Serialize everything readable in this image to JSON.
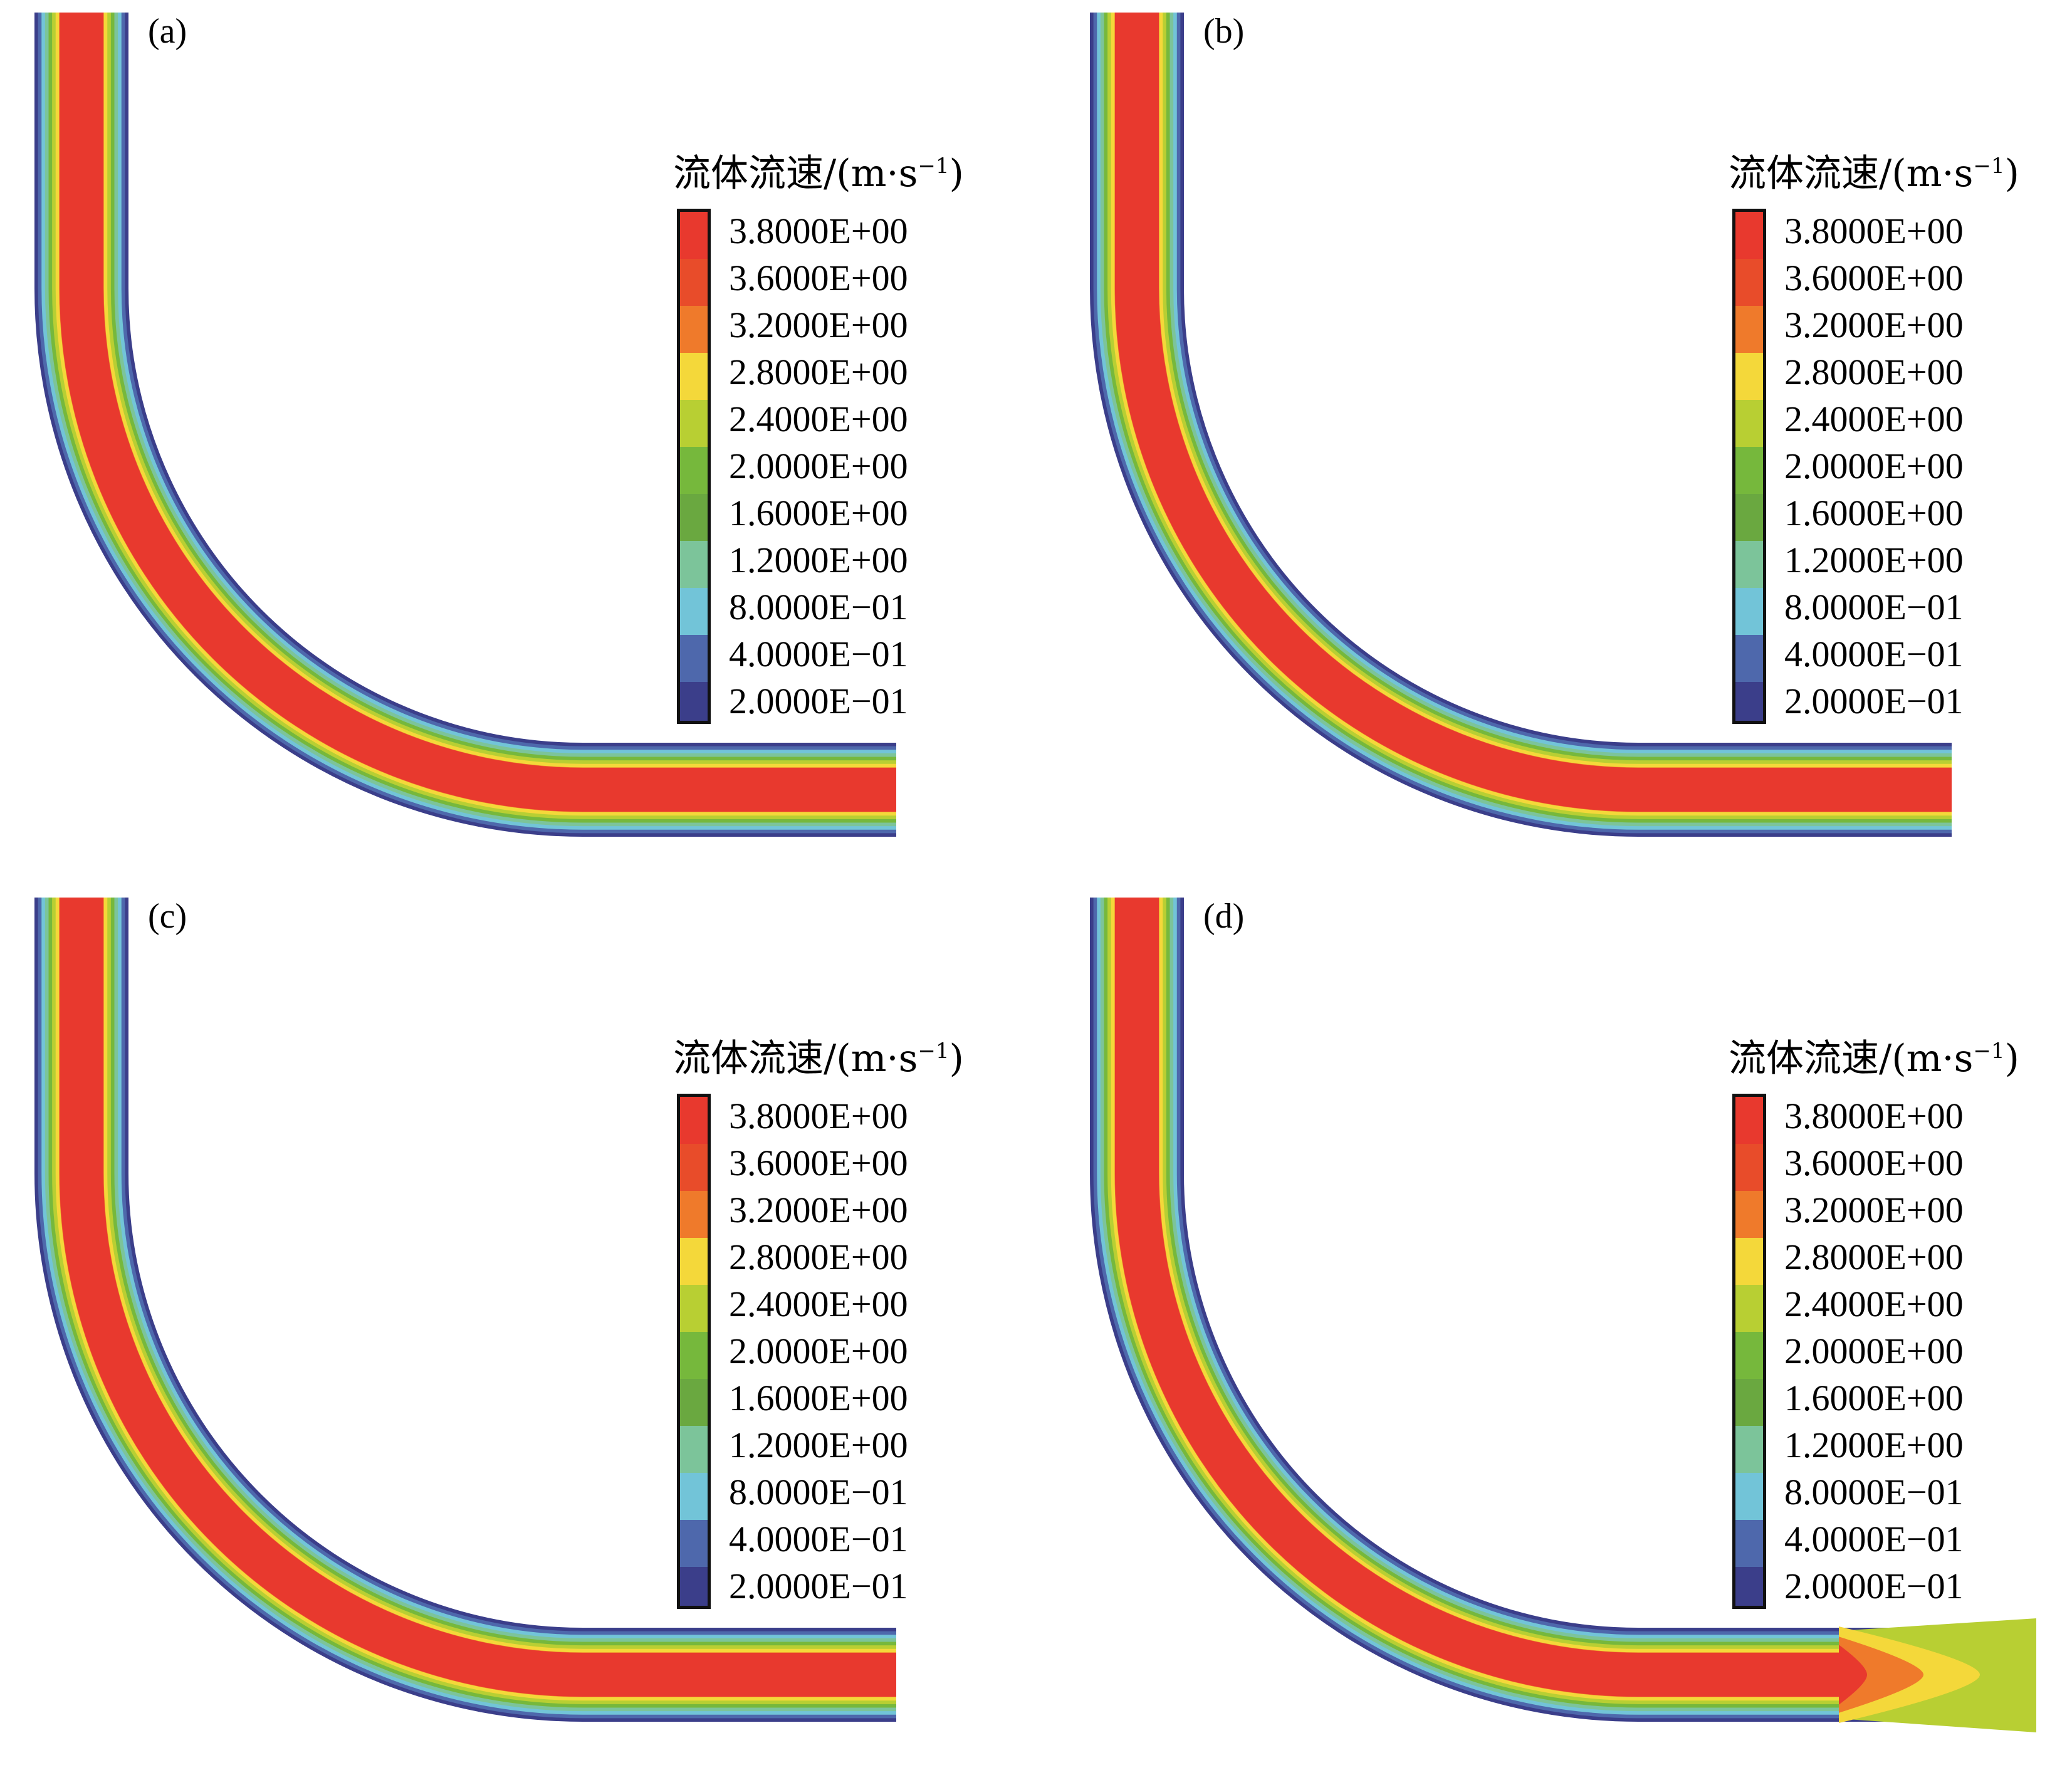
{
  "legend_title": "流体流速/(m·s",
  "legend_title_sup": "−1",
  "legend_title_close": ")",
  "legend_colors": [
    "#e8392e",
    "#e84c2a",
    "#ef7a2b",
    "#f4d83a",
    "#b8cf33",
    "#76b83c",
    "#6aa840",
    "#7cc49a",
    "#72c4d8",
    "#4e68ac",
    "#3b3e8a"
  ],
  "legend_values": [
    "3.8000E+00",
    "3.6000E+00",
    "3.2000E+00",
    "2.8000E+00",
    "2.4000E+00",
    "2.0000E+00",
    "1.6000E+00",
    "1.2000E+00",
    "8.0000E−01",
    "4.0000E−01",
    "2.0000E−01"
  ],
  "panels": [
    {
      "label": "(a)"
    },
    {
      "label": "(b)"
    },
    {
      "label": "(c)"
    },
    {
      "label": "(d)"
    }
  ]
}
